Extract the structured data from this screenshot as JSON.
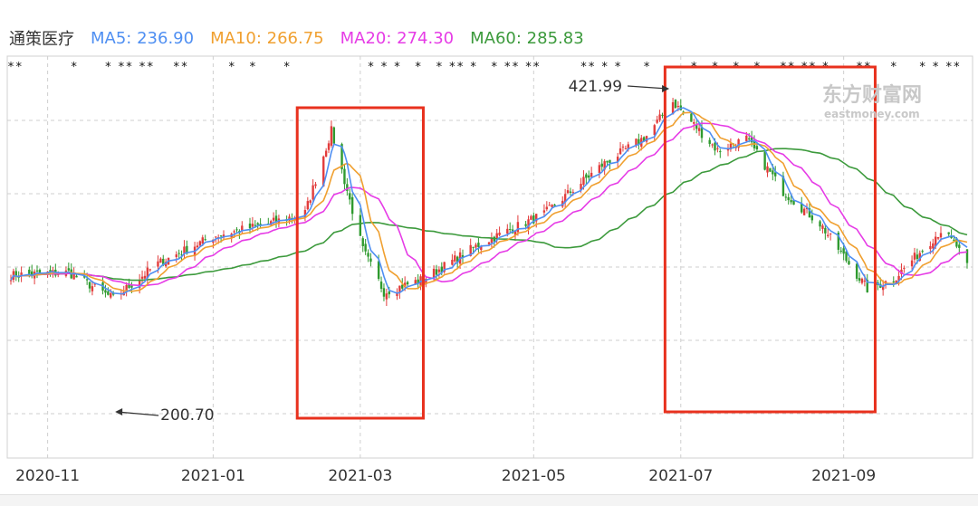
{
  "legend": {
    "name": "通策医疗",
    "items": [
      {
        "label": "MA5: 236.90",
        "color": "#4f8ff2"
      },
      {
        "label": "MA10: 266.75",
        "color": "#f0a030"
      },
      {
        "label": "MA20: 274.30",
        "color": "#e63ce6"
      },
      {
        "label": "MA60: 285.83",
        "color": "#3c9a3c"
      }
    ]
  },
  "watermark": {
    "cn": "东方财富网",
    "en": "eastmoney.com"
  },
  "colors": {
    "up": "#e23c3c",
    "down": "#2f9a2f",
    "grid": "#cfcfcf",
    "box": "#e8311e"
  },
  "chart_data": {
    "type": "candlestick",
    "x_tick_labels": [
      "2020-11",
      "2021-01",
      "2021-03",
      "2021-05",
      "2021-07",
      "2021-09"
    ],
    "annotations": [
      {
        "text": "421.99",
        "date": "2021-06-28",
        "value": 421.99
      },
      {
        "text": "200.70",
        "date": "2020-11-27",
        "value": 200.7
      }
    ],
    "y_range": [
      170,
      440
    ],
    "highlight_boxes": [
      {
        "from": "2021-02-05",
        "to": "2021-03-25"
      },
      {
        "from": "2021-06-25",
        "to": "2021-09-13"
      }
    ],
    "close_approx": [
      {
        "date": "2020-10-19",
        "value": 232
      },
      {
        "date": "2020-11-10",
        "value": 235
      },
      {
        "date": "2020-11-27",
        "value": 208
      },
      {
        "date": "2020-12-14",
        "value": 244
      },
      {
        "date": "2021-01-04",
        "value": 272
      },
      {
        "date": "2021-01-25",
        "value": 285
      },
      {
        "date": "2021-02-08",
        "value": 296
      },
      {
        "date": "2021-02-18",
        "value": 380
      },
      {
        "date": "2021-03-02",
        "value": 258
      },
      {
        "date": "2021-03-10",
        "value": 215
      },
      {
        "date": "2021-03-25",
        "value": 228
      },
      {
        "date": "2021-04-16",
        "value": 265
      },
      {
        "date": "2021-05-10",
        "value": 295
      },
      {
        "date": "2021-06-01",
        "value": 345
      },
      {
        "date": "2021-06-18",
        "value": 375
      },
      {
        "date": "2021-06-28",
        "value": 410
      },
      {
        "date": "2021-07-15",
        "value": 360
      },
      {
        "date": "2021-07-26",
        "value": 372
      },
      {
        "date": "2021-08-09",
        "value": 318
      },
      {
        "date": "2021-08-23",
        "value": 285
      },
      {
        "date": "2021-09-10",
        "value": 218
      },
      {
        "date": "2021-09-20",
        "value": 228
      },
      {
        "date": "2021-10-08",
        "value": 278
      },
      {
        "date": "2021-10-14",
        "value": 262
      },
      {
        "date": "2021-10-18",
        "value": 240
      }
    ],
    "ma_last": {
      "MA5": 236.9,
      "MA10": 266.75,
      "MA20": 274.3,
      "MA60": 285.83
    }
  }
}
